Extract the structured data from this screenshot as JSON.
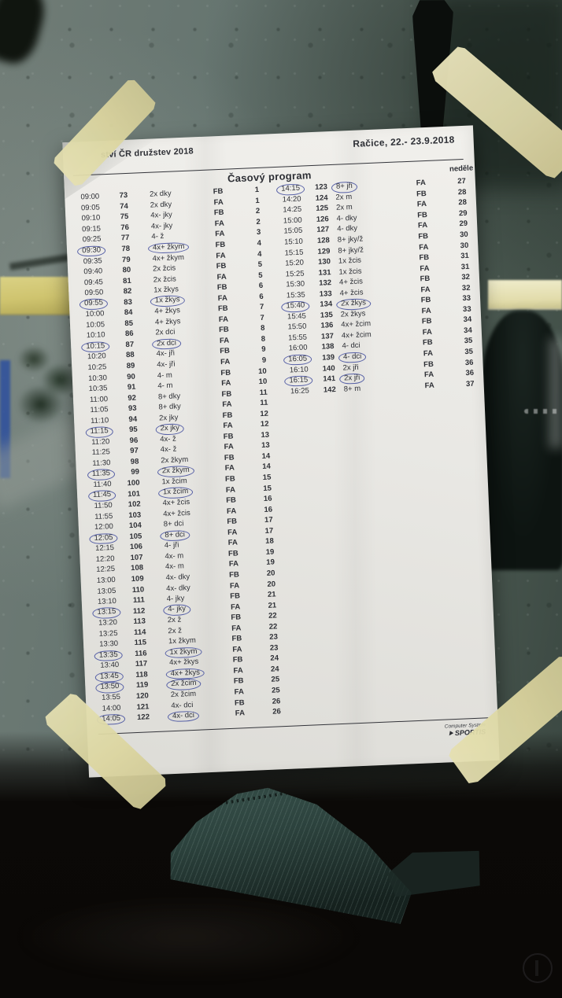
{
  "event": {
    "header_left": "ství ČR družstev 2018",
    "header_right": "Račice,  22.- 23.9.2018",
    "title": "Časový program",
    "day": "neděle"
  },
  "footer": {
    "line1": "Computer System",
    "brand": "SPORTIS"
  },
  "colors": {
    "ink": "#2d2f35",
    "pen_circle": "#4651a0",
    "paper": "#e9e8e4",
    "tape": "#dcd6a0"
  },
  "schedule": {
    "left": [
      {
        "time": "09:00",
        "no": "73",
        "boat": "2x dky",
        "phase": "FB",
        "race": "1",
        "circled": false
      },
      {
        "time": "09:05",
        "no": "74",
        "boat": "2x dky",
        "phase": "FA",
        "race": "1",
        "circled": false
      },
      {
        "time": "09:10",
        "no": "75",
        "boat": "4x- jky",
        "phase": "FB",
        "race": "2",
        "circled": false
      },
      {
        "time": "09:15",
        "no": "76",
        "boat": "4x- jky",
        "phase": "FA",
        "race": "2",
        "circled": false
      },
      {
        "time": "09:25",
        "no": "77",
        "boat": "4- ž",
        "phase": "FA",
        "race": "3",
        "circled": false
      },
      {
        "time": "09:30",
        "no": "78",
        "boat": "4x+ žkym",
        "phase": "FB",
        "race": "4",
        "circled": true
      },
      {
        "time": "09:35",
        "no": "79",
        "boat": "4x+ žkym",
        "phase": "FA",
        "race": "4",
        "circled": false
      },
      {
        "time": "09:40",
        "no": "80",
        "boat": "2x žcis",
        "phase": "FB",
        "race": "5",
        "circled": false
      },
      {
        "time": "09:45",
        "no": "81",
        "boat": "2x žcis",
        "phase": "FA",
        "race": "5",
        "circled": false
      },
      {
        "time": "09:50",
        "no": "82",
        "boat": "1x žkys",
        "phase": "FB",
        "race": "6",
        "circled": false
      },
      {
        "time": "09:55",
        "no": "83",
        "boat": "1x žkys",
        "phase": "FA",
        "race": "6",
        "circled": true
      },
      {
        "time": "10:00",
        "no": "84",
        "boat": "4+ žkys",
        "phase": "FB",
        "race": "7",
        "circled": false
      },
      {
        "time": "10:05",
        "no": "85",
        "boat": "4+ žkys",
        "phase": "FA",
        "race": "7",
        "circled": false
      },
      {
        "time": "10:10",
        "no": "86",
        "boat": "2x dci",
        "phase": "FB",
        "race": "8",
        "circled": false
      },
      {
        "time": "10:15",
        "no": "87",
        "boat": "2x dci",
        "phase": "FA",
        "race": "8",
        "circled": true
      },
      {
        "time": "10:20",
        "no": "88",
        "boat": "4x- jři",
        "phase": "FB",
        "race": "9",
        "circled": false
      },
      {
        "time": "10:25",
        "no": "89",
        "boat": "4x- jři",
        "phase": "FA",
        "race": "9",
        "circled": false
      },
      {
        "time": "10:30",
        "no": "90",
        "boat": "4- m",
        "phase": "FB",
        "race": "10",
        "circled": false
      },
      {
        "time": "10:35",
        "no": "91",
        "boat": "4- m",
        "phase": "FA",
        "race": "10",
        "circled": false
      },
      {
        "time": "11:00",
        "no": "92",
        "boat": "8+ dky",
        "phase": "FB",
        "race": "11",
        "circled": false
      },
      {
        "time": "11:05",
        "no": "93",
        "boat": "8+ dky",
        "phase": "FA",
        "race": "11",
        "circled": false
      },
      {
        "time": "11:10",
        "no": "94",
        "boat": "2x jky",
        "phase": "FB",
        "race": "12",
        "circled": false
      },
      {
        "time": "11:15",
        "no": "95",
        "boat": "2x jky",
        "phase": "FA",
        "race": "12",
        "circled": true
      },
      {
        "time": "11:20",
        "no": "96",
        "boat": "4x- ž",
        "phase": "FB",
        "race": "13",
        "circled": false
      },
      {
        "time": "11:25",
        "no": "97",
        "boat": "4x- ž",
        "phase": "FA",
        "race": "13",
        "circled": false
      },
      {
        "time": "11:30",
        "no": "98",
        "boat": "2x žkym",
        "phase": "FB",
        "race": "14",
        "circled": false
      },
      {
        "time": "11:35",
        "no": "99",
        "boat": "2x žkym",
        "phase": "FA",
        "race": "14",
        "circled": true
      },
      {
        "time": "11:40",
        "no": "100",
        "boat": "1x žcim",
        "phase": "FB",
        "race": "15",
        "circled": false
      },
      {
        "time": "11:45",
        "no": "101",
        "boat": "1x žcim",
        "phase": "FA",
        "race": "15",
        "circled": true
      },
      {
        "time": "11:50",
        "no": "102",
        "boat": "4x+ žcis",
        "phase": "FB",
        "race": "16",
        "circled": false
      },
      {
        "time": "11:55",
        "no": "103",
        "boat": "4x+ žcis",
        "phase": "FA",
        "race": "16",
        "circled": false
      },
      {
        "time": "12:00",
        "no": "104",
        "boat": "8+ dci",
        "phase": "FB",
        "race": "17",
        "circled": false
      },
      {
        "time": "12:05",
        "no": "105",
        "boat": "8+ dci",
        "phase": "FA",
        "race": "17",
        "circled": true
      },
      {
        "time": "12:15",
        "no": "106",
        "boat": "4- jři",
        "phase": "FA",
        "race": "18",
        "circled": false
      },
      {
        "time": "12:20",
        "no": "107",
        "boat": "4x- m",
        "phase": "FB",
        "race": "19",
        "circled": false
      },
      {
        "time": "12:25",
        "no": "108",
        "boat": "4x- m",
        "phase": "FA",
        "race": "19",
        "circled": false
      },
      {
        "time": "13:00",
        "no": "109",
        "boat": "4x- dky",
        "phase": "FB",
        "race": "20",
        "circled": false
      },
      {
        "time": "13:05",
        "no": "110",
        "boat": "4x- dky",
        "phase": "FA",
        "race": "20",
        "circled": false
      },
      {
        "time": "13:10",
        "no": "111",
        "boat": "4- jky",
        "phase": "FB",
        "race": "21",
        "circled": false
      },
      {
        "time": "13:15",
        "no": "112",
        "boat": "4- jky",
        "phase": "FA",
        "race": "21",
        "circled": true
      },
      {
        "time": "13:20",
        "no": "113",
        "boat": "2x ž",
        "phase": "FB",
        "race": "22",
        "circled": false
      },
      {
        "time": "13:25",
        "no": "114",
        "boat": "2x ž",
        "phase": "FA",
        "race": "22",
        "circled": false
      },
      {
        "time": "13:30",
        "no": "115",
        "boat": "1x žkym",
        "phase": "FB",
        "race": "23",
        "circled": false
      },
      {
        "time": "13:35",
        "no": "116",
        "boat": "1x žkym",
        "phase": "FA",
        "race": "23",
        "circled": true
      },
      {
        "time": "13:40",
        "no": "117",
        "boat": "4x+ žkys",
        "phase": "FB",
        "race": "24",
        "circled": false
      },
      {
        "time": "13:45",
        "no": "118",
        "boat": "4x+ žkys",
        "phase": "FA",
        "race": "24",
        "circled": true
      },
      {
        "time": "13:50",
        "no": "119",
        "boat": "2x žcim",
        "phase": "FB",
        "race": "25",
        "circled": true
      },
      {
        "time": "13:55",
        "no": "120",
        "boat": "2x žcim",
        "phase": "FA",
        "race": "25",
        "circled": false
      },
      {
        "time": "14:00",
        "no": "121",
        "boat": "4x- dci",
        "phase": "FB",
        "race": "26",
        "circled": false
      },
      {
        "time": "14:05",
        "no": "122",
        "boat": "4x- dci",
        "phase": "FA",
        "race": "26",
        "circled": true
      }
    ],
    "right": [
      {
        "time": "14:15",
        "no": "123",
        "boat": "8+ jři",
        "phase": "FA",
        "race": "27",
        "circled": true
      },
      {
        "time": "14:20",
        "no": "124",
        "boat": "2x m",
        "phase": "FB",
        "race": "28",
        "circled": false
      },
      {
        "time": "14:25",
        "no": "125",
        "boat": "2x m",
        "phase": "FA",
        "race": "28",
        "circled": false
      },
      {
        "time": "15:00",
        "no": "126",
        "boat": "4- dky",
        "phase": "FB",
        "race": "29",
        "circled": false
      },
      {
        "time": "15:05",
        "no": "127",
        "boat": "4- dky",
        "phase": "FA",
        "race": "29",
        "circled": false
      },
      {
        "time": "15:10",
        "no": "128",
        "boat": "8+ jky/ž",
        "phase": "FB",
        "race": "30",
        "circled": false
      },
      {
        "time": "15:15",
        "no": "129",
        "boat": "8+ jky/ž",
        "phase": "FA",
        "race": "30",
        "circled": false
      },
      {
        "time": "15:20",
        "no": "130",
        "boat": "1x žcis",
        "phase": "FB",
        "race": "31",
        "circled": false
      },
      {
        "time": "15:25",
        "no": "131",
        "boat": "1x žcis",
        "phase": "FA",
        "race": "31",
        "circled": false
      },
      {
        "time": "15:30",
        "no": "132",
        "boat": "4+ žcis",
        "phase": "FB",
        "race": "32",
        "circled": false
      },
      {
        "time": "15:35",
        "no": "133",
        "boat": "4+ žcis",
        "phase": "FA",
        "race": "32",
        "circled": false
      },
      {
        "time": "15:40",
        "no": "134",
        "boat": "2x žkys",
        "phase": "FB",
        "race": "33",
        "circled": true
      },
      {
        "time": "15:45",
        "no": "135",
        "boat": "2x žkys",
        "phase": "FA",
        "race": "33",
        "circled": false
      },
      {
        "time": "15:50",
        "no": "136",
        "boat": "4x+ žcim",
        "phase": "FB",
        "race": "34",
        "circled": false
      },
      {
        "time": "15:55",
        "no": "137",
        "boat": "4x+ žcim",
        "phase": "FA",
        "race": "34",
        "circled": false
      },
      {
        "time": "16:00",
        "no": "138",
        "boat": "4- dci",
        "phase": "FB",
        "race": "35",
        "circled": false
      },
      {
        "time": "16:05",
        "no": "139",
        "boat": "4- dci",
        "phase": "FA",
        "race": "35",
        "circled": true
      },
      {
        "time": "16:10",
        "no": "140",
        "boat": "2x jři",
        "phase": "FB",
        "race": "36",
        "circled": false
      },
      {
        "time": "16:15",
        "no": "141",
        "boat": "2x jři",
        "phase": "FA",
        "race": "36",
        "circled": true
      },
      {
        "time": "16:25",
        "no": "142",
        "boat": "8+ m",
        "phase": "FA",
        "race": "37",
        "circled": false
      }
    ]
  }
}
